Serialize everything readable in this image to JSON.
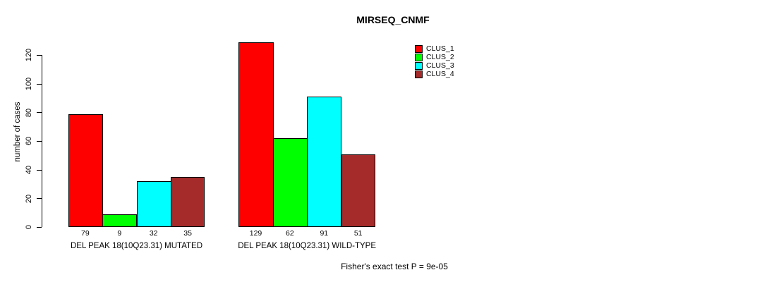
{
  "chart_data": {
    "type": "bar",
    "title": "MIRSEQ_CNMF",
    "ylabel": "number of cases",
    "xlabel": "",
    "ylim": [
      0,
      120
    ],
    "yticks": [
      0,
      20,
      40,
      60,
      80,
      100,
      120
    ],
    "grid": false,
    "legend_position": "top-right",
    "groups": [
      {
        "label": "DEL PEAK 18(10Q23.31) MUTATED",
        "values": [
          79,
          9,
          32,
          35
        ]
      },
      {
        "label": "DEL PEAK 18(10Q23.31) WILD-TYPE",
        "values": [
          129,
          62,
          91,
          51
        ]
      }
    ],
    "series": [
      {
        "name": "CLUS_1",
        "color": "#ff0000"
      },
      {
        "name": "CLUS_2",
        "color": "#00ff00"
      },
      {
        "name": "CLUS_3",
        "color": "#00ffff"
      },
      {
        "name": "CLUS_4",
        "color": "#a52a2a"
      }
    ],
    "annotation": "Fisher's exact test P = 9e-05"
  }
}
